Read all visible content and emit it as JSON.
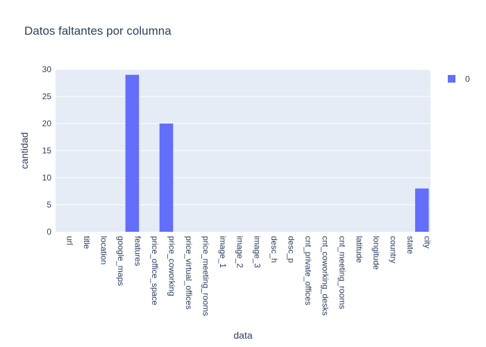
{
  "chart_data": {
    "type": "bar",
    "title": "Datos faltantes por columna",
    "xlabel": "data",
    "ylabel": "cantidad",
    "ylim": [
      0,
      30
    ],
    "yticks": [
      0,
      5,
      10,
      15,
      20,
      25,
      30
    ],
    "grid": true,
    "legend_position": "top-right",
    "categories": [
      "url",
      "title",
      "location",
      "google_maps",
      "features",
      "price_office_space",
      "price_coworking",
      "price_virtual_offices",
      "price_meeting_rooms",
      "image_1",
      "image_2",
      "image_3",
      "desc_h",
      "desc_p",
      "cnt_private_offices",
      "cnt_coworking_desks",
      "cnt_meeting_rooms",
      "latitude",
      "longitude",
      "country",
      "state",
      "city"
    ],
    "series": [
      {
        "name": "0",
        "color": "#636efa",
        "values": [
          0,
          0,
          0,
          0,
          29,
          0,
          20,
          0,
          0,
          0,
          0,
          0,
          0,
          0,
          0,
          0,
          0,
          0,
          0,
          0,
          0,
          8
        ]
      }
    ],
    "colors": {
      "plot_bg": "#e5ecf6",
      "grid": "#ffffff",
      "text": "#2a3f5f"
    }
  }
}
